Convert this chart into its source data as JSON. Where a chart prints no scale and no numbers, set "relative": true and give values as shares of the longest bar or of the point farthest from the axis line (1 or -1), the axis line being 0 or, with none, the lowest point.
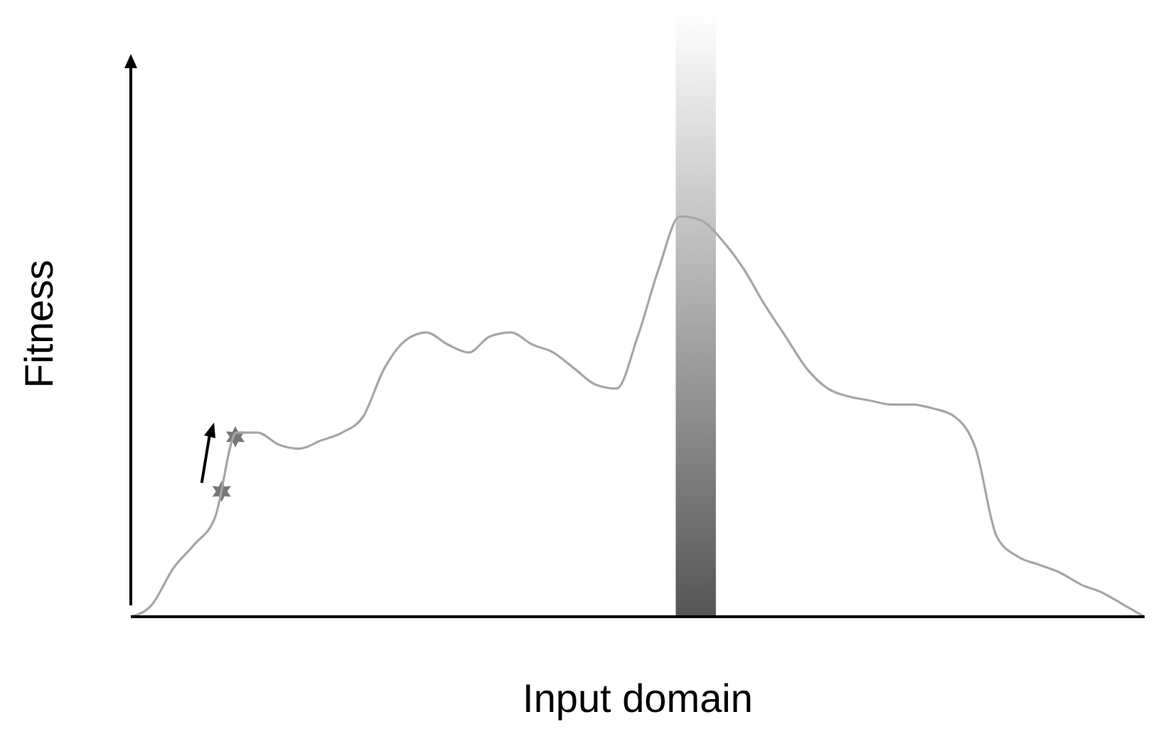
{
  "chart_data": {
    "type": "line",
    "relative": true,
    "xlabel": "Input domain",
    "ylabel": "Fitness",
    "marker": "none",
    "line_style": "solid",
    "categories": [
      null,
      null,
      null,
      null,
      null,
      null,
      null,
      null,
      null,
      null,
      null,
      null,
      null,
      null,
      null,
      null,
      null,
      null,
      null,
      null,
      null,
      null,
      null,
      null,
      null,
      null,
      null,
      null,
      null,
      null,
      null,
      null,
      null,
      null,
      null,
      null,
      null,
      null,
      null,
      null,
      null,
      null,
      null,
      null,
      null,
      null,
      null,
      null,
      null
    ],
    "series": [
      {
        "color": "#a6a6a6",
        "values": [
          0,
          0.03,
          0.12,
          0.18,
          0.25,
          0.46,
          0.46,
          0.43,
          0.42,
          0.44,
          0.46,
          0.5,
          0.62,
          0.69,
          0.71,
          0.68,
          0.66,
          0.7,
          0.71,
          0.68,
          0.66,
          0.62,
          0.58,
          0.57,
          0.7,
          0.87,
          1,
          0.99,
          0.94,
          0.87,
          0.78,
          0.7,
          0.62,
          0.57,
          0.55,
          0.54,
          0.53,
          0.53,
          0.52,
          0.5,
          0.42,
          0.2,
          0.15,
          0.13,
          0.11,
          0.08,
          0.06,
          0.03,
          0
        ]
      }
    ]
  }
}
